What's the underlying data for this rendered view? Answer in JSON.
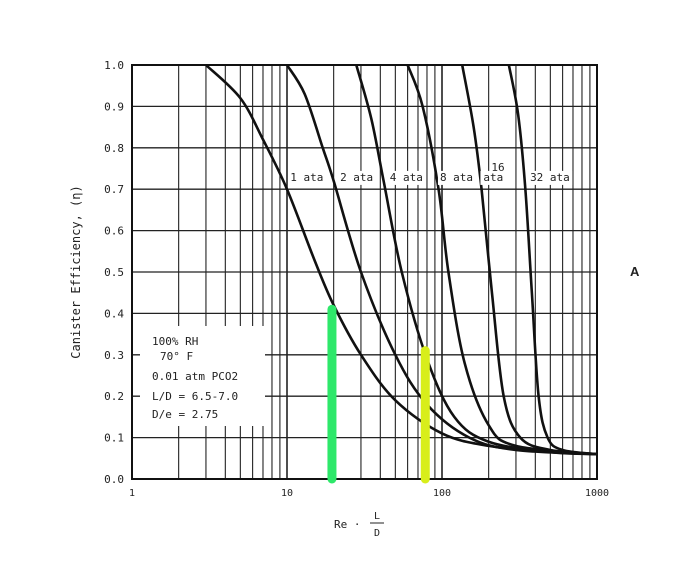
{
  "chart_data": {
    "type": "line",
    "xscale": "log",
    "xlim": [
      1,
      1000
    ],
    "ylim": [
      0,
      1
    ],
    "grid": true,
    "xlabel": "Re · L/D",
    "xlabel_parts": {
      "prefix": "Re ·",
      "num": "L",
      "den": "D"
    },
    "ylabel": "Canister Efficiency, (η)",
    "xticks": [
      {
        "v": 1,
        "label": "1"
      },
      {
        "v": 10,
        "label": "10"
      },
      {
        "v": 100,
        "label": "100"
      },
      {
        "v": 1000,
        "label": "1000"
      }
    ],
    "yticks": [
      {
        "v": 0,
        "label": "0.0"
      },
      {
        "v": 0.1,
        "label": "0.1"
      },
      {
        "v": 0.2,
        "label": "0.2"
      },
      {
        "v": 0.3,
        "label": "0.3"
      },
      {
        "v": 0.4,
        "label": "0.4"
      },
      {
        "v": 0.5,
        "label": "0.5"
      },
      {
        "v": 0.6,
        "label": "0.6"
      },
      {
        "v": 0.7,
        "label": "0.7"
      },
      {
        "v": 0.8,
        "label": "0.8"
      },
      {
        "v": 0.9,
        "label": "0.9"
      },
      {
        "v": 1.0,
        "label": "1.0"
      }
    ],
    "series": [
      {
        "name": "1 ata",
        "label_at": [
          10.5,
          0.72
        ],
        "points": [
          [
            3,
            1.0
          ],
          [
            5,
            0.92
          ],
          [
            7,
            0.82
          ],
          [
            10,
            0.7
          ],
          [
            15,
            0.53
          ],
          [
            20,
            0.42
          ],
          [
            30,
            0.3
          ],
          [
            50,
            0.19
          ],
          [
            100,
            0.11
          ],
          [
            200,
            0.08
          ],
          [
            500,
            0.065
          ],
          [
            1000,
            0.06
          ]
        ]
      },
      {
        "name": "2 ata",
        "label_at": [
          22,
          0.72
        ],
        "points": [
          [
            10,
            1.0
          ],
          [
            13,
            0.93
          ],
          [
            17,
            0.8
          ],
          [
            20,
            0.72
          ],
          [
            30,
            0.5
          ],
          [
            50,
            0.3
          ],
          [
            80,
            0.18
          ],
          [
            150,
            0.1
          ],
          [
            300,
            0.07
          ],
          [
            1000,
            0.06
          ]
        ]
      },
      {
        "name": "4 ata",
        "label_at": [
          46,
          0.72
        ],
        "points": [
          [
            28,
            1.0
          ],
          [
            35,
            0.87
          ],
          [
            42,
            0.72
          ],
          [
            55,
            0.5
          ],
          [
            80,
            0.29
          ],
          [
            120,
            0.15
          ],
          [
            200,
            0.09
          ],
          [
            500,
            0.065
          ],
          [
            1000,
            0.06
          ]
        ]
      },
      {
        "name": "8 ata",
        "label_at": [
          97,
          0.72
        ],
        "points": [
          [
            60,
            1.0
          ],
          [
            75,
            0.9
          ],
          [
            95,
            0.7
          ],
          [
            110,
            0.5
          ],
          [
            140,
            0.28
          ],
          [
            200,
            0.13
          ],
          [
            300,
            0.08
          ],
          [
            1000,
            0.06
          ]
        ]
      },
      {
        "name": "16",
        "name2": "ata",
        "label_at": [
          185,
          0.72
        ],
        "points": [
          [
            135,
            1.0
          ],
          [
            160,
            0.85
          ],
          [
            180,
            0.7
          ],
          [
            210,
            0.45
          ],
          [
            250,
            0.2
          ],
          [
            320,
            0.1
          ],
          [
            500,
            0.07
          ],
          [
            1000,
            0.06
          ]
        ]
      },
      {
        "name": "32 ata",
        "label_at": [
          370,
          0.72
        ],
        "points": [
          [
            270,
            1.0
          ],
          [
            310,
            0.88
          ],
          [
            345,
            0.7
          ],
          [
            380,
            0.45
          ],
          [
            420,
            0.2
          ],
          [
            480,
            0.1
          ],
          [
            600,
            0.07
          ],
          [
            1000,
            0.06
          ]
        ]
      }
    ],
    "highlights": [
      {
        "name": "green-marker",
        "x": 19.5,
        "y": [
          0,
          0.41
        ],
        "color": "#2ee86a"
      },
      {
        "name": "yellow-marker",
        "x": 78,
        "y": [
          0,
          0.31
        ],
        "color": "#d8ee1a"
      }
    ],
    "annotation_box": [
      "100% RH",
      "70° F",
      "0.01 atm PCO2",
      "L/D = 6.5-7.0",
      "D/e = 2.75"
    ],
    "panel_label": "A"
  }
}
